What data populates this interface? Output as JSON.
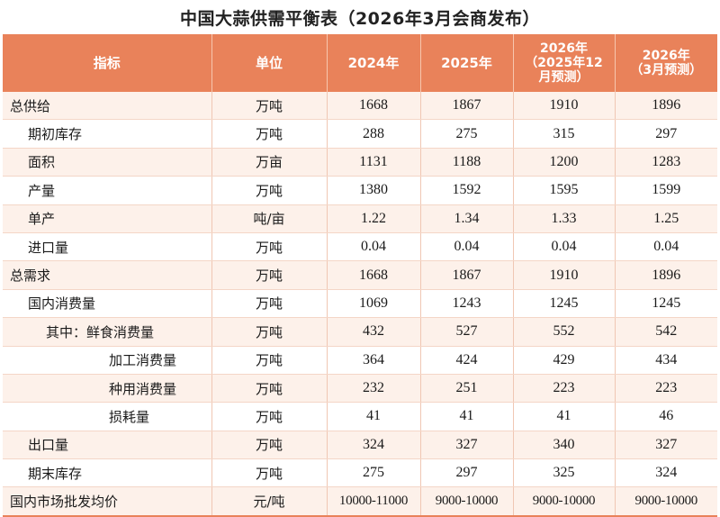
{
  "title": "中国大蒜供需平衡表（2026年3月会商发布）",
  "headers": {
    "indicator": "指标",
    "unit": "单位",
    "y2024": "2024年",
    "y2025": "2025年",
    "f1": {
      "line1": "2026年",
      "line2": "（2025年12",
      "line3": "月预测）"
    },
    "f2": {
      "line1": "2026年",
      "line2": "（3月预测）"
    }
  },
  "rows": [
    {
      "indicator": "总供给",
      "unit": "万吨",
      "v2024": "1668",
      "v2025": "1867",
      "f1": "1910",
      "f2": "1896"
    },
    {
      "indicator": "期初库存",
      "unit": "万吨",
      "v2024": "288",
      "v2025": "275",
      "f1": "315",
      "f2": "297"
    },
    {
      "indicator": "面积",
      "unit": "万亩",
      "v2024": "1131",
      "v2025": "1188",
      "f1": "1200",
      "f2": "1283"
    },
    {
      "indicator": "产量",
      "unit": "万吨",
      "v2024": "1380",
      "v2025": "1592",
      "f1": "1595",
      "f2": "1599"
    },
    {
      "indicator": "单产",
      "unit": "吨/亩",
      "v2024": "1.22",
      "v2025": "1.34",
      "f1": "1.33",
      "f2": "1.25"
    },
    {
      "indicator": "进口量",
      "unit": "万吨",
      "v2024": "0.04",
      "v2025": "0.04",
      "f1": "0.04",
      "f2": "0.04"
    },
    {
      "indicator": "总需求",
      "unit": "万吨",
      "v2024": "1668",
      "v2025": "1867",
      "f1": "1910",
      "f2": "1896"
    },
    {
      "indicator": "国内消费量",
      "unit": "万吨",
      "v2024": "1069",
      "v2025": "1243",
      "f1": "1245",
      "f2": "1245"
    },
    {
      "indicator": "其中：鲜食消费量",
      "unit": "万吨",
      "v2024": "432",
      "v2025": "527",
      "f1": "552",
      "f2": "542"
    },
    {
      "indicator": "加工消费量",
      "unit": "万吨",
      "v2024": "364",
      "v2025": "424",
      "f1": "429",
      "f2": "434"
    },
    {
      "indicator": "种用消费量",
      "unit": "万吨",
      "v2024": "232",
      "v2025": "251",
      "f1": "223",
      "f2": "223"
    },
    {
      "indicator": "损耗量",
      "unit": "万吨",
      "v2024": "41",
      "v2025": "41",
      "f1": "41",
      "f2": "46"
    },
    {
      "indicator": "出口量",
      "unit": "万吨",
      "v2024": "324",
      "v2025": "327",
      "f1": "340",
      "f2": "327"
    },
    {
      "indicator": "期末库存",
      "unit": "万吨",
      "v2024": "275",
      "v2025": "297",
      "f1": "325",
      "f2": "324"
    },
    {
      "indicator": "国内市场批发均价",
      "unit": "元/吨",
      "v2024": "10000-11000",
      "v2025": "9000-10000",
      "f1": "9000-10000",
      "f2": "9000-10000"
    }
  ],
  "colors": {
    "header_bg": "#e9825a",
    "header_text": "#ffffff",
    "row_stripe": "#fdf1ea"
  }
}
